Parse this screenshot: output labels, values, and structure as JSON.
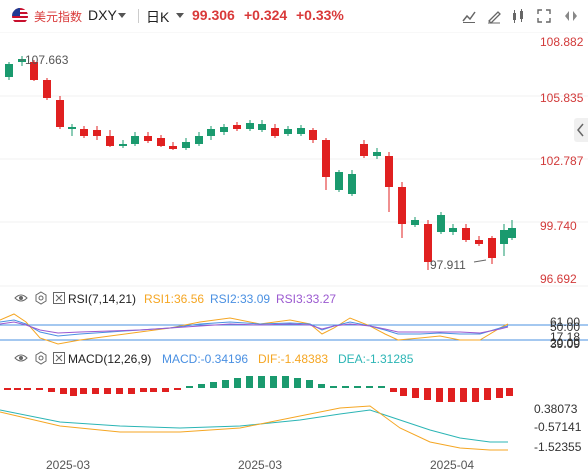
{
  "header": {
    "name": "美元指数",
    "code": "DXY",
    "period": "日K",
    "price": "99.306",
    "change": "+0.324",
    "change_pct": "+0.33%"
  },
  "main_axis": {
    "labels": [
      "108.882",
      "105.835",
      "102.787",
      "99.740",
      "96.692"
    ]
  },
  "annotations": {
    "high": "107.663",
    "low": "97.911"
  },
  "rsi": {
    "title": "RSI(7,14,21)",
    "rsi1": "RSI1:36.56",
    "rsi2": "RSI2:33.09",
    "rsi3": "RSI3:33.27",
    "axis": [
      "61.00",
      "50.00",
      "39.09",
      "20.00",
      "17.18"
    ]
  },
  "macd": {
    "title": "MACD(12,26,9)",
    "macd": "MACD:-0.34196",
    "dif": "DIF:-1.48383",
    "dea": "DEA:-1.31285",
    "axis": [
      "0.38073",
      "-0.57141",
      "-1.52355"
    ]
  },
  "x_axis": {
    "labels": [
      "2025-03",
      "2025-03",
      "2025-04"
    ]
  },
  "colors": {
    "up": "#e02020",
    "down": "#1a9a6e",
    "rsi1": "#f5a623",
    "rsi2": "#4a90e2",
    "rsi3": "#9b59d0",
    "dif": "#f5a623",
    "dea": "#2bb5b5",
    "line": "#4a90e2"
  }
}
